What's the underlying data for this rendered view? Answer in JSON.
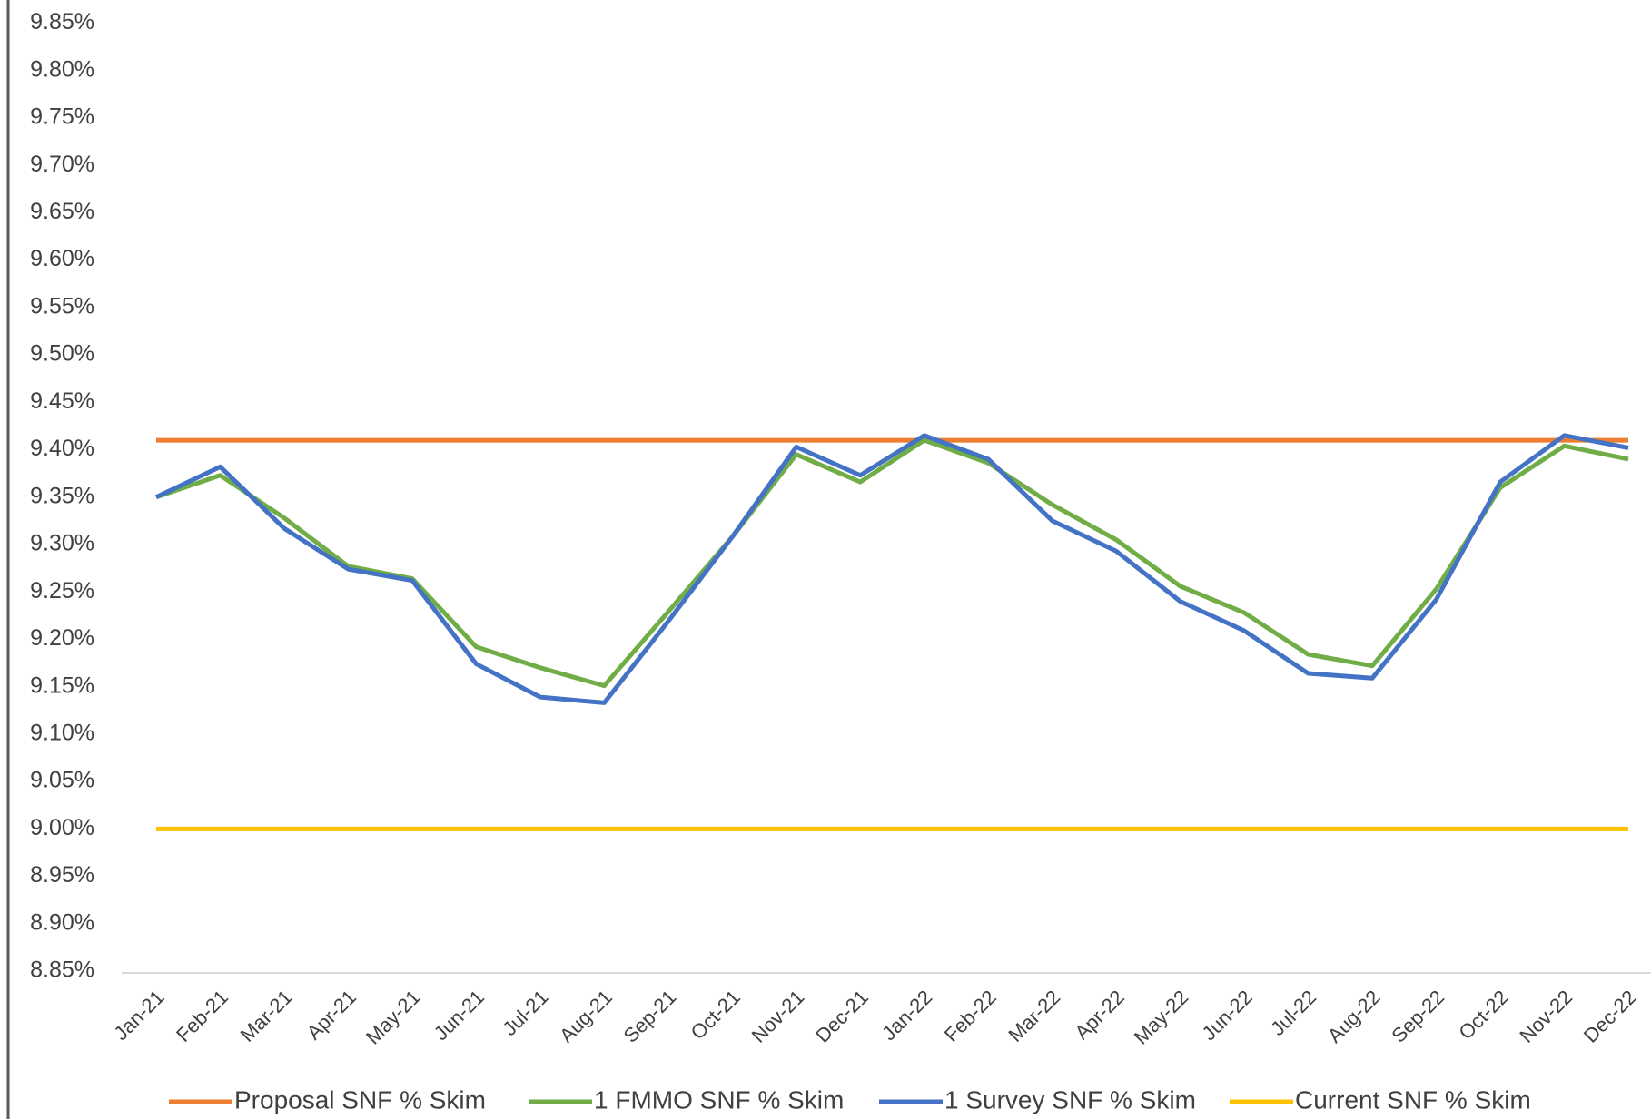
{
  "chart_data": {
    "type": "line",
    "categories": [
      "Jan-21",
      "Feb-21",
      "Mar-21",
      "Apr-21",
      "May-21",
      "Jun-21",
      "Jul-21",
      "Aug-21",
      "Sep-21",
      "Oct-21",
      "Nov-21",
      "Dec-21",
      "Jan-22",
      "Feb-22",
      "Mar-22",
      "Apr-22",
      "May-22",
      "Jun-22",
      "Jul-22",
      "Aug-22",
      "Sep-22",
      "Oct-22",
      "Nov-22",
      "Dec-22"
    ],
    "series": [
      {
        "name": "Proposal SNF % Skim",
        "color": "#ed7d31",
        "values": [
          9.41,
          9.41,
          9.41,
          9.41,
          9.41,
          9.41,
          9.41,
          9.41,
          9.41,
          9.41,
          9.41,
          9.41,
          9.41,
          9.41,
          9.41,
          9.41,
          9.41,
          9.41,
          9.41,
          9.41,
          9.41,
          9.41,
          9.41,
          9.41
        ]
      },
      {
        "name": "1 FMMO SNF % Skim",
        "color": "#70ad47",
        "values": [
          9.35,
          9.373,
          9.328,
          9.277,
          9.264,
          9.192,
          9.17,
          9.151,
          9.229,
          9.308,
          9.395,
          9.366,
          9.41,
          9.386,
          9.342,
          9.305,
          9.256,
          9.228,
          9.184,
          9.172,
          9.253,
          9.36,
          9.404,
          9.39
        ]
      },
      {
        "name": "1 Survey SNF % Skim",
        "color": "#4472c4",
        "values": [
          9.35,
          9.382,
          9.317,
          9.274,
          9.262,
          9.174,
          9.139,
          9.133,
          9.219,
          9.308,
          9.403,
          9.373,
          9.415,
          9.39,
          9.325,
          9.293,
          9.24,
          9.209,
          9.164,
          9.159,
          9.242,
          9.366,
          9.415,
          9.402
        ]
      },
      {
        "name": "Current SNF % Skim",
        "color": "#ffc000",
        "values": [
          9.0,
          9.0,
          9.0,
          9.0,
          9.0,
          9.0,
          9.0,
          9.0,
          9.0,
          9.0,
          9.0,
          9.0,
          9.0,
          9.0,
          9.0,
          9.0,
          9.0,
          9.0,
          9.0,
          9.0,
          9.0,
          9.0,
          9.0,
          9.0
        ]
      }
    ],
    "ylim": [
      8.85,
      9.85
    ],
    "yticks": [
      {
        "value": 8.85,
        "label": "8.85%"
      },
      {
        "value": 8.9,
        "label": "8.90%"
      },
      {
        "value": 8.95,
        "label": "8.95%"
      },
      {
        "value": 9.0,
        "label": "9.00%"
      },
      {
        "value": 9.05,
        "label": "9.05%"
      },
      {
        "value": 9.1,
        "label": "9.10%"
      },
      {
        "value": 9.15,
        "label": "9.15%"
      },
      {
        "value": 9.2,
        "label": "9.20%"
      },
      {
        "value": 9.25,
        "label": "9.25%"
      },
      {
        "value": 9.3,
        "label": "9.30%"
      },
      {
        "value": 9.35,
        "label": "9.35%"
      },
      {
        "value": 9.4,
        "label": "9.40%"
      },
      {
        "value": 9.45,
        "label": "9.45%"
      },
      {
        "value": 9.5,
        "label": "9.50%"
      },
      {
        "value": 9.55,
        "label": "9.55%"
      },
      {
        "value": 9.6,
        "label": "9.60%"
      },
      {
        "value": 9.65,
        "label": "9.65%"
      },
      {
        "value": 9.7,
        "label": "9.70%"
      },
      {
        "value": 9.75,
        "label": "9.75%"
      },
      {
        "value": 9.8,
        "label": "9.80%"
      },
      {
        "value": 9.85,
        "label": "9.85%"
      }
    ],
    "grid": false,
    "legend": "bottom"
  }
}
